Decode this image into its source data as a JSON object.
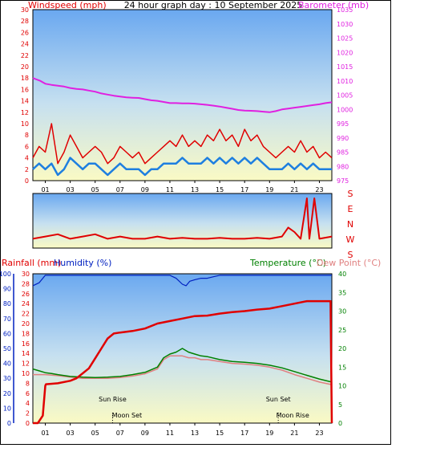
{
  "title": "24 hour graph day : 10 September 2025",
  "colors": {
    "wind": "#e00000",
    "gust_blue": "#1e7fe0",
    "baro": "#e020e0",
    "rain": "#e00000",
    "humidity": "#0020c0",
    "temperature": "#008000",
    "dewpoint": "#e08080",
    "sky_top": "#6aa8f0",
    "sky_bottom": "#f8f8c0"
  },
  "chart_data": [
    {
      "type": "line",
      "name": "wind-baro",
      "ylabel": "Windspeed (mph)",
      "y2label": "Barometer (mb)",
      "ylim": [
        0,
        30
      ],
      "y2lim": [
        975,
        1035
      ],
      "yticks": [
        "0",
        "2",
        "4",
        "6",
        "8",
        "10",
        "12",
        "14",
        "16",
        "18",
        "20",
        "22",
        "24",
        "26",
        "28",
        "30"
      ],
      "y2ticks": [
        "975",
        "980",
        "985",
        "990",
        "995",
        "1000",
        "1005",
        "1010",
        "1015",
        "1020",
        "1025",
        "1030",
        "1035"
      ],
      "xticks": [
        "01",
        "03",
        "05",
        "07",
        "09",
        "11",
        "13",
        "15",
        "17",
        "19",
        "21",
        "23"
      ],
      "x_hours": [
        0,
        24
      ],
      "series": [
        {
          "role": "barometer",
          "x": [
            0,
            0.3,
            0.6,
            1,
            1.5,
            2,
            2.5,
            3,
            3.5,
            4,
            4.5,
            5,
            5.5,
            6,
            6.5,
            7,
            7.5,
            8,
            8.5,
            9,
            9.5,
            10,
            10.5,
            11,
            11.5,
            12,
            12.5,
            13,
            13.5,
            14,
            14.5,
            15,
            15.5,
            16,
            16.5,
            17,
            17.5,
            18,
            18.5,
            19,
            19.5,
            20,
            20.5,
            21,
            21.5,
            22,
            22.5,
            23,
            23.5,
            24
          ],
          "values": [
            1011,
            1010.5,
            1010,
            1009,
            1008.6,
            1008.3,
            1008,
            1007.5,
            1007.2,
            1007,
            1006.6,
            1006.2,
            1005.6,
            1005.2,
            1004.8,
            1004.5,
            1004.2,
            1004.1,
            1004,
            1003.6,
            1003.2,
            1003,
            1002.6,
            1002.2,
            1002.2,
            1002.1,
            1002.1,
            1002,
            1001.8,
            1001.6,
            1001.3,
            1001,
            1000.6,
            1000.2,
            999.8,
            999.6,
            999.5,
            999.4,
            999.2,
            999,
            999.4,
            1000,
            1000.3,
            1000.6,
            1000.9,
            1001.2,
            1001.5,
            1001.8,
            1002.2,
            1002.5
          ]
        },
        {
          "role": "wind",
          "x": [
            0,
            0.5,
            1,
            1.5,
            2,
            2.5,
            3,
            3.5,
            4,
            4.5,
            5,
            5.5,
            6,
            6.5,
            7,
            7.5,
            8,
            8.5,
            9,
            9.5,
            10,
            10.5,
            11,
            11.5,
            12,
            12.5,
            13,
            13.5,
            14,
            14.5,
            15,
            15.5,
            16,
            16.5,
            17,
            17.5,
            18,
            18.5,
            19,
            19.5,
            20,
            20.5,
            21,
            21.5,
            22,
            22.5,
            23,
            23.5,
            24
          ],
          "values": [
            4,
            6,
            5,
            10,
            3,
            5,
            8,
            6,
            4,
            5,
            6,
            5,
            3,
            4,
            6,
            5,
            4,
            5,
            3,
            4,
            5,
            6,
            7,
            6,
            8,
            6,
            7,
            6,
            8,
            7,
            9,
            7,
            8,
            6,
            9,
            7,
            8,
            6,
            5,
            4,
            5,
            6,
            5,
            7,
            5,
            6,
            4,
            5,
            4
          ]
        },
        {
          "role": "average",
          "x": [
            0,
            0.5,
            1,
            1.5,
            2,
            2.5,
            3,
            3.5,
            4,
            4.5,
            5,
            5.5,
            6,
            6.5,
            7,
            7.5,
            8,
            8.5,
            9,
            9.5,
            10,
            10.5,
            11,
            11.5,
            12,
            12.5,
            13,
            13.5,
            14,
            14.5,
            15,
            15.5,
            16,
            16.5,
            17,
            17.5,
            18,
            18.5,
            19,
            19.5,
            20,
            20.5,
            21,
            21.5,
            22,
            22.5,
            23,
            23.5,
            24
          ],
          "values": [
            2,
            3,
            2,
            3,
            1,
            2,
            4,
            3,
            2,
            3,
            3,
            2,
            1,
            2,
            3,
            2,
            2,
            2,
            1,
            2,
            2,
            3,
            3,
            3,
            4,
            3,
            3,
            3,
            4,
            3,
            4,
            3,
            4,
            3,
            4,
            3,
            4,
            3,
            2,
            2,
            2,
            3,
            2,
            3,
            2,
            3,
            2,
            2,
            2
          ]
        }
      ]
    },
    {
      "type": "line",
      "name": "wind-direction",
      "yticks": [
        "S",
        "E",
        "N",
        "W",
        "S"
      ],
      "x": [
        0,
        1,
        2,
        3,
        4,
        5,
        6,
        7,
        8,
        9,
        10,
        11,
        12,
        13,
        14,
        15,
        16,
        17,
        18,
        19,
        20,
        20.5,
        21,
        21.5,
        22,
        22.2,
        22.6,
        23,
        24
      ],
      "values": [
        0.1,
        0.15,
        0.2,
        0.1,
        0.15,
        0.2,
        0.1,
        0.15,
        0.1,
        0.1,
        0.15,
        0.1,
        0.12,
        0.1,
        0.1,
        0.12,
        0.1,
        0.1,
        0.12,
        0.1,
        0.15,
        0.35,
        0.25,
        0.1,
        1.0,
        0.1,
        1.0,
        0.1,
        0.15
      ]
    },
    {
      "type": "line",
      "name": "rain-humidity-temperature",
      "y1label": "Rainfall (mm)",
      "y2label": "Humidity (%)",
      "y3label": "Temperature (°C)",
      "y4label": "Dew Point (°C)",
      "rain_ylim": [
        0,
        30
      ],
      "humidity_ylim": [
        0,
        100
      ],
      "temp_ylim": [
        0,
        40
      ],
      "rain_ticks": [
        "0",
        "2",
        "4",
        "6",
        "8",
        "10",
        "12",
        "14",
        "16",
        "18",
        "20",
        "22",
        "24",
        "26",
        "28",
        "30"
      ],
      "humidity_ticks": [
        "0",
        "10",
        "20",
        "30",
        "40",
        "50",
        "60",
        "70",
        "80",
        "90",
        "100"
      ],
      "temp_ticks": [
        "0",
        "5",
        "10",
        "15",
        "20",
        "25",
        "30",
        "35",
        "40"
      ],
      "xticks": [
        "01",
        "03",
        "05",
        "07",
        "09",
        "11",
        "13",
        "15",
        "17",
        "19",
        "21",
        "23"
      ],
      "series": [
        {
          "role": "humidity",
          "x": [
            0,
            0.5,
            1,
            1.5,
            2,
            3,
            4,
            5,
            6,
            7,
            8,
            9,
            10,
            11,
            11.5,
            12,
            12.3,
            12.6,
            13,
            13.5,
            14,
            14.5,
            15,
            16,
            17,
            18,
            19,
            20,
            21,
            22,
            23,
            24
          ],
          "values": [
            92,
            94,
            99,
            99,
            99,
            99,
            99,
            99,
            99,
            99,
            99,
            99,
            99,
            99,
            97,
            93,
            92,
            95,
            96,
            97,
            97,
            98,
            99,
            99,
            99,
            99,
            99,
            99,
            99,
            99,
            99,
            99
          ]
        },
        {
          "role": "rain",
          "x": [
            0,
            0.4,
            0.8,
            1.0,
            1.05,
            2,
            3,
            3.5,
            4,
            4.5,
            5,
            5.5,
            6,
            6.5,
            7,
            8,
            9,
            10,
            11,
            12,
            13,
            14,
            15,
            16,
            17,
            18,
            19,
            20,
            21,
            22,
            23,
            23.9,
            24
          ],
          "values": [
            0,
            0,
            1.5,
            7.5,
            7.8,
            8,
            8.5,
            9,
            10,
            11,
            13,
            15,
            17,
            18,
            18.2,
            18.5,
            19,
            20,
            20.5,
            21,
            21.5,
            21.6,
            22,
            22.3,
            22.5,
            22.8,
            23,
            23.5,
            24,
            24.5,
            24.5,
            24.5,
            0
          ]
        },
        {
          "role": "temperature",
          "x": [
            0,
            0.5,
            1,
            1.5,
            2,
            3,
            4,
            5,
            6,
            7,
            8,
            9,
            10,
            10.5,
            11,
            11.5,
            12,
            12.5,
            13,
            13.5,
            14,
            15,
            16,
            17,
            18,
            19,
            20,
            21,
            22,
            23,
            24
          ],
          "values": [
            14.5,
            14,
            13.5,
            13.3,
            13,
            12.5,
            12.3,
            12.2,
            12.3,
            12.5,
            13,
            13.6,
            15,
            17.5,
            18.5,
            19,
            20,
            19,
            18.5,
            18,
            17.8,
            17,
            16.5,
            16.3,
            16,
            15.5,
            14.8,
            13.8,
            12.8,
            11.8,
            11
          ]
        },
        {
          "role": "dewpoint",
          "x": [
            0,
            1,
            2,
            3,
            4,
            5,
            6,
            7,
            8,
            9,
            10,
            10.5,
            11,
            11.5,
            12,
            12.5,
            13,
            13.5,
            14,
            15,
            16,
            17,
            18,
            19,
            20,
            21,
            22,
            23,
            24
          ],
          "values": [
            13,
            13,
            12.7,
            12.3,
            12,
            12,
            12,
            12.2,
            12.6,
            13.2,
            14.5,
            17,
            18,
            18,
            18,
            17.5,
            17.5,
            17,
            17,
            16.5,
            16,
            15.8,
            15.5,
            15,
            14.2,
            13,
            12,
            11,
            10.3
          ]
        }
      ],
      "annotations": [
        {
          "label": "Sun Rise",
          "hour": 6.4
        },
        {
          "label": "Moon Set",
          "hour": 6.4
        },
        {
          "label": "Sun Set",
          "hour": 19.7
        },
        {
          "label": "Moon Rise",
          "hour": 19.7
        }
      ]
    }
  ]
}
